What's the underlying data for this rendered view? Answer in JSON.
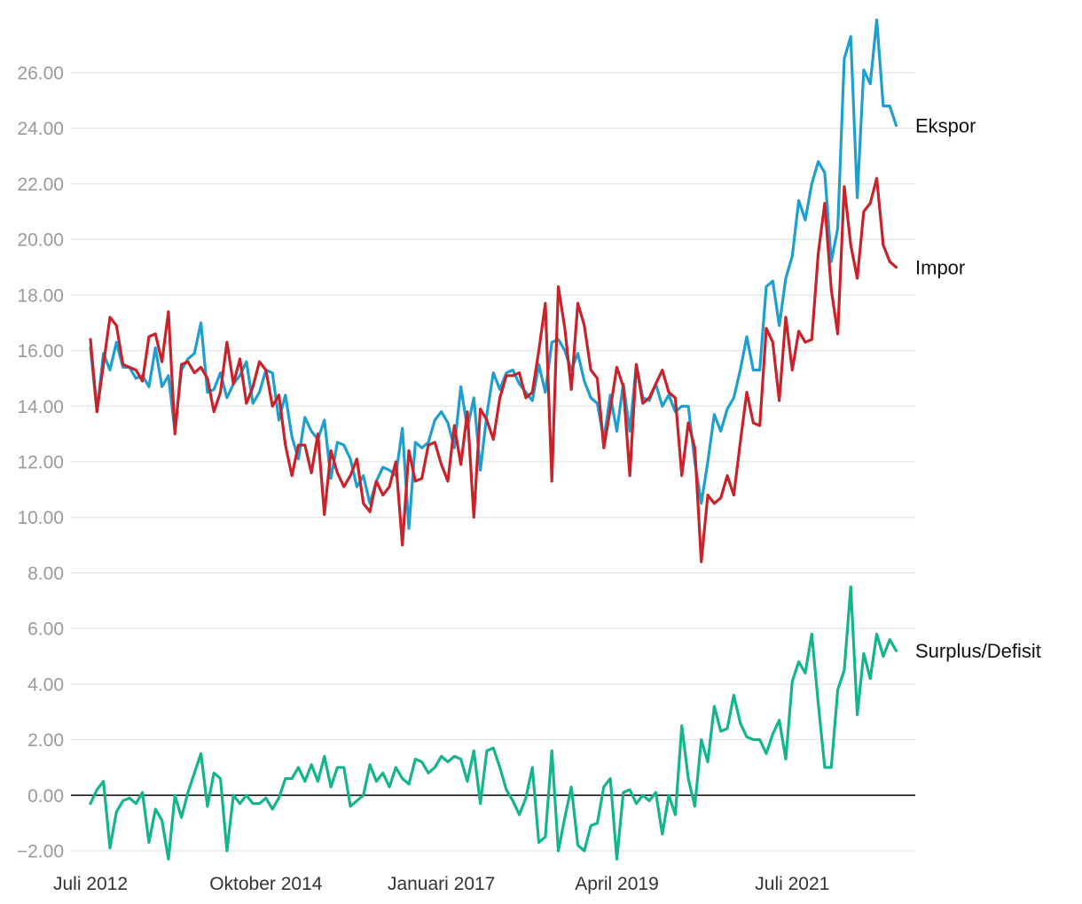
{
  "chart_data": {
    "type": "line",
    "x_start": "2012-07",
    "x_interval": "month",
    "ylim": [
      -2.0,
      26.0
    ],
    "y_ticks": [
      "-2.00",
      "0.00",
      "2.00",
      "4.00",
      "6.00",
      "8.00",
      "10.00",
      "12.00",
      "14.00",
      "16.00",
      "18.00",
      "20.00",
      "22.00",
      "24.00",
      "26.00"
    ],
    "x_ticks": [
      {
        "label": "Juli 2012",
        "date": "2012-07"
      },
      {
        "label": "Oktober 2014",
        "date": "2014-10"
      },
      {
        "label": "Januari 2017",
        "date": "2017-01"
      },
      {
        "label": "April 2019",
        "date": "2019-04"
      },
      {
        "label": "Juli 2021",
        "date": "2021-07"
      }
    ],
    "grid": true,
    "reference_line": 0,
    "series": [
      {
        "name": "Ekspor",
        "color": "#1e9fcf",
        "values": [
          16.1,
          13.8,
          15.9,
          15.3,
          16.3,
          15.4,
          15.4,
          15.0,
          15.1,
          14.7,
          16.1,
          14.7,
          15.1,
          13.1,
          15.3,
          15.7,
          15.9,
          17.0,
          14.5,
          14.6,
          15.2,
          14.3,
          14.8,
          15.1,
          15.6,
          14.1,
          14.5,
          15.3,
          15.2,
          13.5,
          14.4,
          12.9,
          12.1,
          13.6,
          13.1,
          12.8,
          13.5,
          11.4,
          12.7,
          12.6,
          12.1,
          11.1,
          11.5,
          10.5,
          11.3,
          11.8,
          11.7,
          11.5,
          13.2,
          9.6,
          12.7,
          12.5,
          12.7,
          13.5,
          13.8,
          13.4,
          12.5,
          14.7,
          13.2,
          14.3,
          11.7,
          13.7,
          15.2,
          14.6,
          15.2,
          15.3,
          14.8,
          14.5,
          14.2,
          15.5,
          14.5,
          16.3,
          16.4,
          16.0,
          15.3,
          15.9,
          14.9,
          14.3,
          14.1,
          12.8,
          14.4,
          13.1,
          14.8,
          13.1,
          15.5,
          14.3,
          14.2,
          14.8,
          14.0,
          14.4,
          13.8,
          14.0,
          14.0,
          12.0,
          10.5,
          12.0,
          13.7,
          13.1,
          13.9,
          14.3,
          15.3,
          16.5,
          15.3,
          15.3,
          18.3,
          18.5,
          16.9,
          18.6,
          19.4,
          21.4,
          20.7,
          22.0,
          22.8,
          22.4,
          19.2,
          20.4,
          26.5,
          27.3,
          21.5,
          26.1,
          25.6,
          27.9,
          24.8,
          24.8,
          24.1
        ]
      },
      {
        "name": "Impor",
        "color": "#c8232b",
        "values": [
          16.4,
          13.8,
          15.5,
          17.2,
          16.9,
          15.5,
          15.4,
          15.3,
          14.9,
          16.5,
          16.6,
          15.6,
          17.4,
          13.0,
          15.5,
          15.6,
          15.2,
          15.4,
          15.0,
          13.8,
          14.5,
          16.3,
          14.8,
          15.7,
          14.1,
          14.7,
          15.6,
          15.3,
          14.0,
          14.4,
          12.6,
          11.5,
          12.6,
          12.6,
          11.6,
          13.0,
          10.1,
          12.4,
          11.6,
          11.1,
          11.5,
          12.1,
          10.5,
          10.2,
          11.3,
          10.8,
          11.1,
          12.0,
          9.0,
          12.4,
          11.3,
          11.4,
          12.6,
          12.7,
          11.9,
          11.3,
          13.3,
          11.9,
          13.8,
          10.0,
          13.9,
          13.5,
          12.8,
          14.3,
          15.1,
          15.1,
          15.2,
          14.3,
          14.5,
          16.0,
          17.7,
          11.3,
          18.3,
          16.8,
          14.6,
          17.7,
          16.9,
          15.3,
          15.0,
          12.5,
          13.9,
          15.4,
          14.7,
          11.5,
          15.5,
          14.1,
          14.3,
          14.8,
          15.3,
          14.5,
          14.3,
          11.5,
          13.4,
          12.5,
          8.4,
          10.8,
          10.5,
          10.7,
          11.5,
          10.8,
          12.7,
          14.5,
          13.4,
          13.3,
          16.8,
          16.3,
          14.2,
          17.2,
          15.3,
          16.7,
          16.3,
          16.4,
          19.5,
          21.3,
          18.2,
          16.6,
          21.9,
          19.8,
          18.6,
          21.0,
          21.3,
          22.2,
          19.8,
          19.2,
          19.0
        ]
      },
      {
        "name": "Surplus/Defisit",
        "color": "#14b48c",
        "values": [
          -0.3,
          0.2,
          0.5,
          -1.9,
          -0.6,
          -0.2,
          -0.1,
          -0.3,
          0.1,
          -1.7,
          -0.5,
          -0.9,
          -2.3,
          0.0,
          -0.8,
          0.1,
          0.8,
          1.5,
          -0.4,
          0.8,
          0.6,
          -2.0,
          0.0,
          -0.3,
          0.0,
          -0.3,
          -0.3,
          -0.1,
          -0.5,
          -0.1,
          0.6,
          0.6,
          1.0,
          0.5,
          1.1,
          0.5,
          1.4,
          0.3,
          1.0,
          1.0,
          -0.4,
          -0.2,
          0.0,
          1.1,
          0.5,
          0.8,
          0.3,
          1.0,
          0.6,
          0.4,
          1.3,
          1.2,
          0.8,
          1.0,
          1.4,
          1.2,
          1.4,
          1.3,
          0.5,
          1.6,
          -0.3,
          1.6,
          1.7,
          1.0,
          0.2,
          -0.2,
          -0.7,
          -0.1,
          1.0,
          -1.7,
          -1.5,
          1.6,
          -2.0,
          -0.8,
          0.3,
          -1.8,
          -2.0,
          -1.1,
          -1.0,
          0.3,
          0.6,
          -2.3,
          0.1,
          0.2,
          -0.3,
          0.0,
          -0.2,
          0.1,
          -1.4,
          0.0,
          -0.7,
          2.5,
          0.6,
          -0.4,
          2.0,
          1.2,
          3.2,
          2.3,
          2.4,
          3.6,
          2.6,
          2.1,
          2.0,
          2.0,
          1.5,
          2.2,
          2.7,
          1.3,
          4.1,
          4.8,
          4.4,
          5.8,
          3.3,
          1.0,
          1.0,
          3.8,
          4.5,
          7.5,
          2.9,
          5.1,
          4.2,
          5.8,
          5.0,
          5.6,
          5.2
        ]
      }
    ]
  }
}
